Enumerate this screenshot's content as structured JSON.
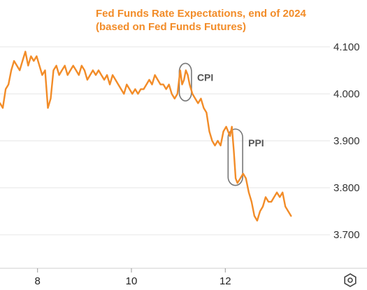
{
  "chart_data": {
    "type": "line",
    "title_lines": [
      "Fed Funds Rate Expectations, end of 2024",
      "(based on Fed Funds Futures)"
    ],
    "xlabel": "",
    "ylabel": "",
    "x_ticks": [
      {
        "x": 8,
        "label": "8"
      },
      {
        "x": 10,
        "label": "10"
      },
      {
        "x": 12,
        "label": "12"
      }
    ],
    "xlim": [
      7.2,
      14.2
    ],
    "y_ticks": [
      {
        "y": 3.7,
        "label": "3.700"
      },
      {
        "y": 3.8,
        "label": "3.800"
      },
      {
        "y": 3.9,
        "label": "3.900"
      },
      {
        "y": 4.0,
        "label": "4.000"
      },
      {
        "y": 4.1,
        "label": "4.100"
      }
    ],
    "ylim": [
      3.63,
      4.17
    ],
    "grid": "horizontal",
    "colors": {
      "series": "#f28c28",
      "title": "#f28c28",
      "grid": "#e6e6e6",
      "annotation_box": "#777777"
    },
    "series": [
      {
        "x": [
          7.2,
          7.26,
          7.32,
          7.38,
          7.44,
          7.5,
          7.56,
          7.62,
          7.68,
          7.74,
          7.8,
          7.86,
          7.92,
          7.98,
          8.04,
          8.1,
          8.16,
          8.22,
          8.28,
          8.34,
          8.4,
          8.46,
          8.52,
          8.58,
          8.64,
          8.7,
          8.76,
          8.82,
          8.88,
          8.94,
          9.0,
          9.06,
          9.12,
          9.18,
          9.24,
          9.3,
          9.36,
          9.42,
          9.48,
          9.54,
          9.6,
          9.66,
          9.72,
          9.78,
          9.84,
          9.9,
          9.96,
          10.02,
          10.08,
          10.14,
          10.2,
          10.26,
          10.32,
          10.38,
          10.44,
          10.5,
          10.56,
          10.62,
          10.68,
          10.74,
          10.8,
          10.86,
          10.92,
          10.98,
          11.04,
          11.08,
          11.12,
          11.16,
          11.2,
          11.24,
          11.3,
          11.36,
          11.42,
          11.48,
          11.54,
          11.6,
          11.66,
          11.72,
          11.78,
          11.84,
          11.9,
          11.96,
          12.02,
          12.06,
          12.1,
          12.14,
          12.18,
          12.22,
          12.26,
          12.32,
          12.38,
          12.44,
          12.5,
          12.56,
          12.62,
          12.68,
          12.74,
          12.8,
          12.86,
          12.92,
          12.98,
          13.04,
          13.1,
          13.16,
          13.22,
          13.28,
          13.34,
          13.4
        ],
        "y": [
          3.98,
          3.97,
          4.01,
          4.02,
          4.05,
          4.07,
          4.06,
          4.05,
          4.07,
          4.09,
          4.06,
          4.08,
          4.07,
          4.08,
          4.06,
          4.04,
          4.05,
          3.97,
          3.99,
          4.05,
          4.06,
          4.04,
          4.05,
          4.06,
          4.04,
          4.05,
          4.06,
          4.05,
          4.04,
          4.06,
          4.05,
          4.03,
          4.04,
          4.05,
          4.04,
          4.05,
          4.04,
          4.03,
          4.04,
          4.02,
          4.04,
          4.03,
          4.02,
          4.01,
          4.0,
          4.02,
          4.01,
          4.0,
          4.01,
          4.0,
          4.01,
          4.01,
          4.02,
          4.03,
          4.02,
          4.04,
          4.03,
          4.02,
          4.02,
          4.01,
          4.02,
          4.0,
          3.99,
          4.0,
          4.05,
          4.02,
          4.03,
          4.05,
          4.04,
          4.02,
          4.0,
          3.99,
          3.98,
          3.99,
          3.97,
          3.96,
          3.92,
          3.9,
          3.89,
          3.9,
          3.89,
          3.92,
          3.93,
          3.92,
          3.91,
          3.93,
          3.88,
          3.82,
          3.81,
          3.82,
          3.83,
          3.82,
          3.79,
          3.77,
          3.74,
          3.73,
          3.75,
          3.76,
          3.78,
          3.77,
          3.77,
          3.78,
          3.79,
          3.78,
          3.79,
          3.76,
          3.75,
          3.74
        ]
      }
    ],
    "annotations": [
      {
        "label": "CPI",
        "x0": 11.02,
        "x1": 11.28,
        "y0": 3.985,
        "y1": 4.065
      },
      {
        "label": "PPI",
        "x0": 12.06,
        "x1": 12.37,
        "y0": 3.805,
        "y1": 3.925
      }
    ]
  },
  "toolbar": {
    "icon": "gear-icon"
  }
}
